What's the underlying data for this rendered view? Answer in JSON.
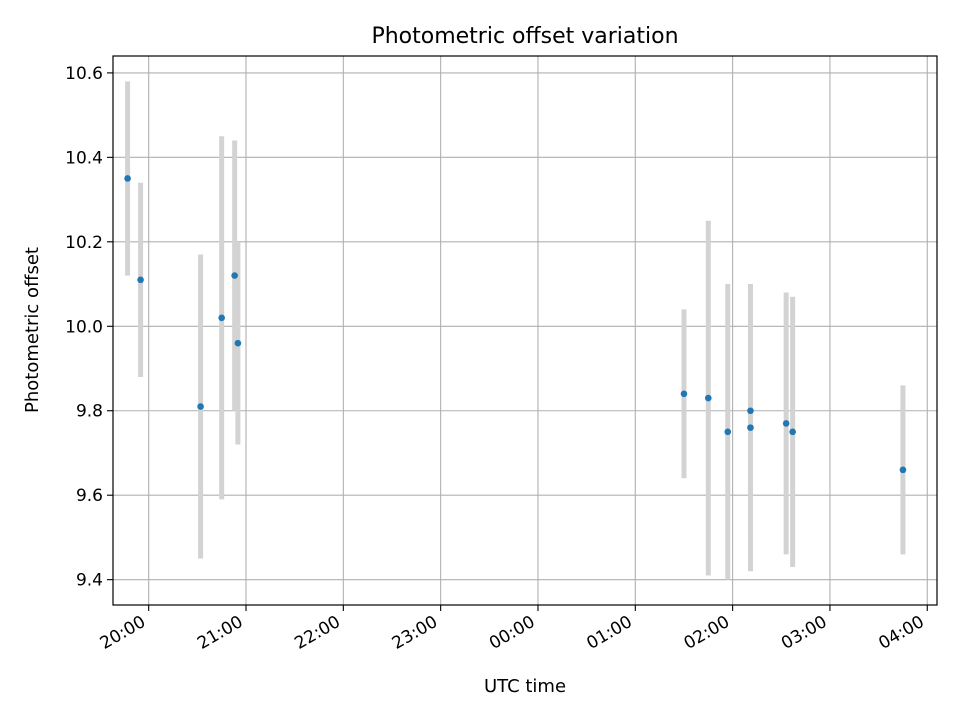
{
  "chart_data": {
    "type": "scatter",
    "title": "Photometric offset variation",
    "xlabel": "UTC time",
    "ylabel": "Photometric offset",
    "x_ticks": [
      "20:00",
      "21:00",
      "22:00",
      "23:00",
      "00:00",
      "01:00",
      "02:00",
      "03:00",
      "04:00"
    ],
    "y_ticks": [
      "9.4",
      "9.6",
      "9.8",
      "10.0",
      "10.2",
      "10.4",
      "10.6"
    ],
    "xlim": [
      "19:38",
      "04:06"
    ],
    "ylim": [
      9.34,
      10.64
    ],
    "grid": true,
    "marker_color": "#1f77b4",
    "errorbar_color": "#d3d3d3",
    "points": [
      {
        "time": "19:47",
        "value": 10.35,
        "err": 0.23
      },
      {
        "time": "19:55",
        "value": 10.11,
        "err": 0.23
      },
      {
        "time": "20:32",
        "value": 9.81,
        "err": 0.36
      },
      {
        "time": "20:45",
        "value": 10.02,
        "err": 0.43
      },
      {
        "time": "20:53",
        "value": 10.12,
        "err": 0.32
      },
      {
        "time": "20:55",
        "value": 9.96,
        "err": 0.24
      },
      {
        "time": "01:30",
        "value": 9.84,
        "err": 0.2
      },
      {
        "time": "01:45",
        "value": 9.83,
        "err": 0.42
      },
      {
        "time": "01:57",
        "value": 9.75,
        "err": 0.35
      },
      {
        "time": "02:11",
        "value": 9.8,
        "err": 0.3
      },
      {
        "time": "02:11",
        "value": 9.76,
        "err": 0.34
      },
      {
        "time": "02:33",
        "value": 9.77,
        "err": 0.31
      },
      {
        "time": "02:37",
        "value": 9.75,
        "err": 0.32
      },
      {
        "time": "03:45",
        "value": 9.66,
        "err": 0.2
      }
    ]
  }
}
